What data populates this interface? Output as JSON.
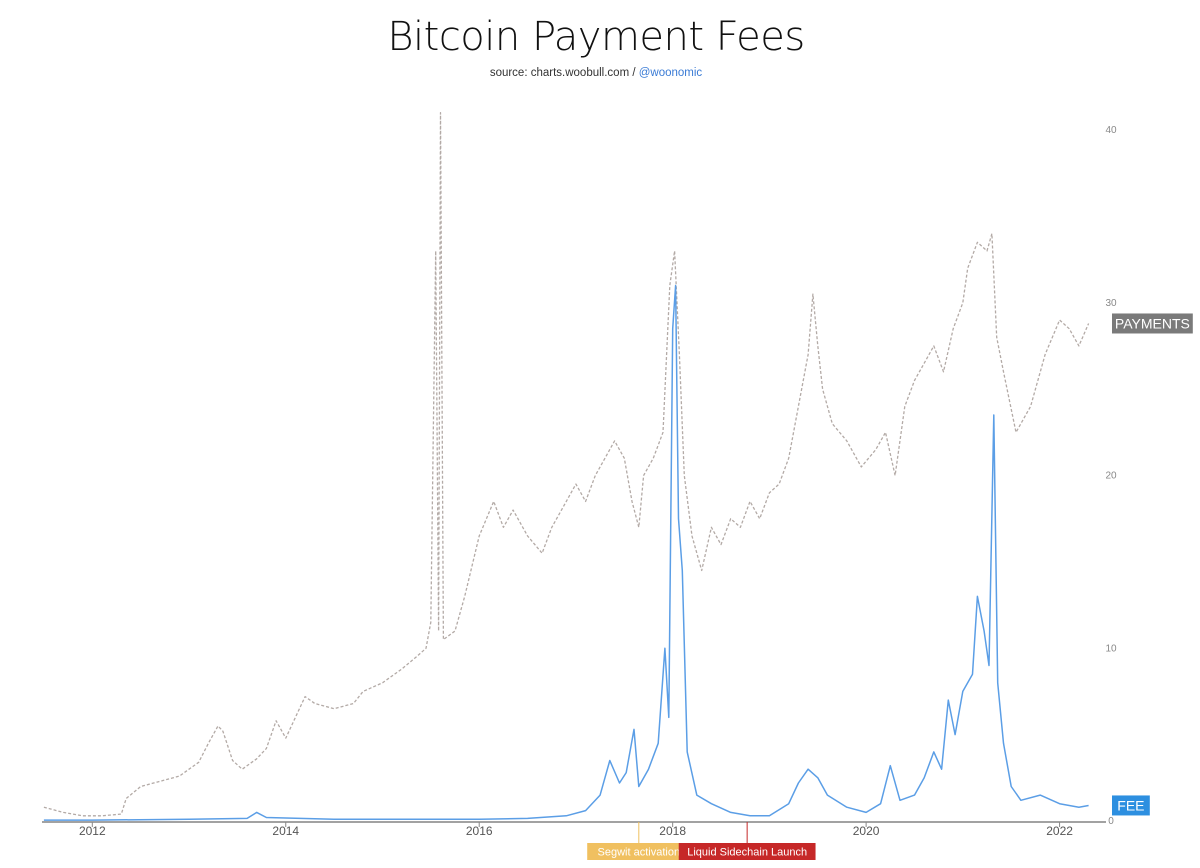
{
  "title": "Bitcoin Payment Fees",
  "source": {
    "text": "source: charts.woobull.com / ",
    "handle": "@woonomic"
  },
  "chart_data": {
    "type": "line",
    "x_range": [
      2011.48,
      2022.48
    ],
    "x_ticks": [
      {
        "value": 2012,
        "label": "2012"
      },
      {
        "value": 2014,
        "label": "2014"
      },
      {
        "value": 2016,
        "label": "2016"
      },
      {
        "value": 2018,
        "label": "2018"
      },
      {
        "value": 2020,
        "label": "2020"
      },
      {
        "value": 2022,
        "label": "2022"
      }
    ],
    "y_range": [
      0,
      40
    ],
    "y_ticks": [
      {
        "value": 0,
        "label": "0"
      },
      {
        "value": 10,
        "label": "10"
      },
      {
        "value": 20,
        "label": "20"
      },
      {
        "value": 30,
        "label": "30"
      },
      {
        "value": 40,
        "label": "40"
      }
    ],
    "grid": false,
    "series": [
      {
        "name": "PAYMENTS",
        "color": "#b3aaa6",
        "style": "dashed",
        "points": [
          [
            2011.5,
            0.8
          ],
          [
            2011.7,
            0.5
          ],
          [
            2011.9,
            0.3
          ],
          [
            2012.1,
            0.3
          ],
          [
            2012.3,
            0.4
          ],
          [
            2012.35,
            1.3
          ],
          [
            2012.5,
            2.0
          ],
          [
            2012.7,
            2.3
          ],
          [
            2012.9,
            2.6
          ],
          [
            2013.0,
            3.0
          ],
          [
            2013.1,
            3.4
          ],
          [
            2013.2,
            4.5
          ],
          [
            2013.3,
            5.5
          ],
          [
            2013.35,
            5.2
          ],
          [
            2013.45,
            3.5
          ],
          [
            2013.55,
            3.0
          ],
          [
            2013.7,
            3.6
          ],
          [
            2013.8,
            4.2
          ],
          [
            2013.9,
            5.8
          ],
          [
            2014.0,
            4.8
          ],
          [
            2014.1,
            6.0
          ],
          [
            2014.2,
            7.2
          ],
          [
            2014.3,
            6.8
          ],
          [
            2014.5,
            6.5
          ],
          [
            2014.7,
            6.8
          ],
          [
            2014.8,
            7.5
          ],
          [
            2015.0,
            8.0
          ],
          [
            2015.2,
            8.8
          ],
          [
            2015.35,
            9.5
          ],
          [
            2015.45,
            10.0
          ],
          [
            2015.5,
            11.5
          ],
          [
            2015.55,
            33.0
          ],
          [
            2015.58,
            11.0
          ],
          [
            2015.6,
            41.0
          ],
          [
            2015.63,
            10.5
          ],
          [
            2015.75,
            11.0
          ],
          [
            2015.85,
            13.0
          ],
          [
            2016.0,
            16.5
          ],
          [
            2016.15,
            18.5
          ],
          [
            2016.25,
            17.0
          ],
          [
            2016.35,
            18.0
          ],
          [
            2016.5,
            16.5
          ],
          [
            2016.65,
            15.5
          ],
          [
            2016.75,
            17.0
          ],
          [
            2016.9,
            18.5
          ],
          [
            2017.0,
            19.5
          ],
          [
            2017.1,
            18.5
          ],
          [
            2017.2,
            20.0
          ],
          [
            2017.3,
            21.0
          ],
          [
            2017.4,
            22.0
          ],
          [
            2017.5,
            21.0
          ],
          [
            2017.58,
            18.5
          ],
          [
            2017.65,
            17.0
          ],
          [
            2017.7,
            20.0
          ],
          [
            2017.8,
            21.0
          ],
          [
            2017.9,
            22.5
          ],
          [
            2017.97,
            31.0
          ],
          [
            2018.02,
            33.0
          ],
          [
            2018.07,
            27.0
          ],
          [
            2018.12,
            20.0
          ],
          [
            2018.2,
            16.5
          ],
          [
            2018.3,
            14.5
          ],
          [
            2018.4,
            17.0
          ],
          [
            2018.5,
            16.0
          ],
          [
            2018.6,
            17.5
          ],
          [
            2018.7,
            17.0
          ],
          [
            2018.8,
            18.5
          ],
          [
            2018.9,
            17.5
          ],
          [
            2019.0,
            19.0
          ],
          [
            2019.1,
            19.5
          ],
          [
            2019.2,
            21.0
          ],
          [
            2019.3,
            24.0
          ],
          [
            2019.4,
            27.0
          ],
          [
            2019.45,
            30.5
          ],
          [
            2019.5,
            27.5
          ],
          [
            2019.55,
            25.0
          ],
          [
            2019.65,
            23.0
          ],
          [
            2019.8,
            22.0
          ],
          [
            2019.95,
            20.5
          ],
          [
            2020.1,
            21.5
          ],
          [
            2020.2,
            22.5
          ],
          [
            2020.3,
            20.0
          ],
          [
            2020.4,
            24.0
          ],
          [
            2020.5,
            25.5
          ],
          [
            2020.6,
            26.5
          ],
          [
            2020.7,
            27.5
          ],
          [
            2020.8,
            26.0
          ],
          [
            2020.9,
            28.5
          ],
          [
            2021.0,
            30.0
          ],
          [
            2021.05,
            32.0
          ],
          [
            2021.15,
            33.5
          ],
          [
            2021.25,
            33.0
          ],
          [
            2021.3,
            34.0
          ],
          [
            2021.35,
            28.0
          ],
          [
            2021.42,
            26.0
          ],
          [
            2021.55,
            22.5
          ],
          [
            2021.7,
            24.0
          ],
          [
            2021.85,
            27.0
          ],
          [
            2022.0,
            29.0
          ],
          [
            2022.1,
            28.5
          ],
          [
            2022.2,
            27.5
          ],
          [
            2022.3,
            28.8
          ]
        ]
      },
      {
        "name": "FEE",
        "color": "#5b9ee6",
        "style": "solid",
        "points": [
          [
            2011.5,
            0.05
          ],
          [
            2012.0,
            0.05
          ],
          [
            2013.0,
            0.1
          ],
          [
            2013.6,
            0.15
          ],
          [
            2013.7,
            0.5
          ],
          [
            2013.8,
            0.2
          ],
          [
            2014.5,
            0.1
          ],
          [
            2015.5,
            0.1
          ],
          [
            2016.0,
            0.1
          ],
          [
            2016.5,
            0.15
          ],
          [
            2016.9,
            0.3
          ],
          [
            2017.1,
            0.6
          ],
          [
            2017.25,
            1.5
          ],
          [
            2017.35,
            3.5
          ],
          [
            2017.45,
            2.2
          ],
          [
            2017.52,
            2.8
          ],
          [
            2017.6,
            5.3
          ],
          [
            2017.65,
            2.0
          ],
          [
            2017.75,
            3.0
          ],
          [
            2017.85,
            4.5
          ],
          [
            2017.92,
            10.0
          ],
          [
            2017.96,
            6.0
          ],
          [
            2018.0,
            28.5
          ],
          [
            2018.03,
            31.0
          ],
          [
            2018.06,
            17.5
          ],
          [
            2018.1,
            14.5
          ],
          [
            2018.15,
            4.0
          ],
          [
            2018.25,
            1.5
          ],
          [
            2018.4,
            1.0
          ],
          [
            2018.6,
            0.5
          ],
          [
            2018.8,
            0.3
          ],
          [
            2019.0,
            0.3
          ],
          [
            2019.2,
            1.0
          ],
          [
            2019.3,
            2.2
          ],
          [
            2019.4,
            3.0
          ],
          [
            2019.5,
            2.5
          ],
          [
            2019.6,
            1.5
          ],
          [
            2019.8,
            0.8
          ],
          [
            2020.0,
            0.5
          ],
          [
            2020.15,
            1.0
          ],
          [
            2020.25,
            3.2
          ],
          [
            2020.35,
            1.2
          ],
          [
            2020.5,
            1.5
          ],
          [
            2020.6,
            2.5
          ],
          [
            2020.7,
            4.0
          ],
          [
            2020.78,
            3.0
          ],
          [
            2020.85,
            7.0
          ],
          [
            2020.92,
            5.0
          ],
          [
            2021.0,
            7.5
          ],
          [
            2021.1,
            8.5
          ],
          [
            2021.15,
            13.0
          ],
          [
            2021.22,
            11.0
          ],
          [
            2021.27,
            9.0
          ],
          [
            2021.32,
            23.5
          ],
          [
            2021.36,
            8.0
          ],
          [
            2021.42,
            4.5
          ],
          [
            2021.5,
            2.0
          ],
          [
            2021.6,
            1.2
          ],
          [
            2021.8,
            1.5
          ],
          [
            2022.0,
            1.0
          ],
          [
            2022.2,
            0.8
          ],
          [
            2022.3,
            0.9
          ]
        ]
      }
    ],
    "events": [
      {
        "label": "Segwit activation",
        "x": 2017.65,
        "color": "#f0c060"
      },
      {
        "label": "Liquid Sidechain Launch",
        "x": 2018.77,
        "color": "#c62828"
      }
    ],
    "end_labels": [
      {
        "series": "PAYMENTS",
        "label": "PAYMENTS",
        "color": "#7a7a7a"
      },
      {
        "series": "FEE",
        "label": "FEE",
        "color": "#2d8fe0"
      }
    ]
  }
}
